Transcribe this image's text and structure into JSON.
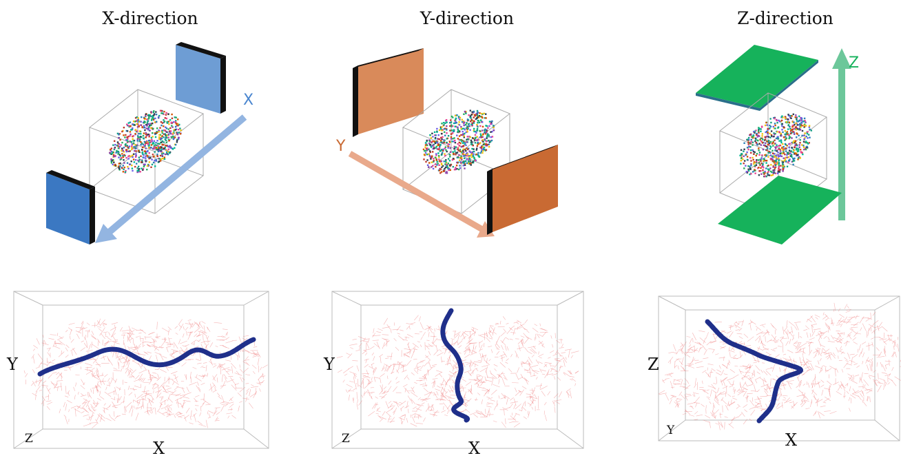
{
  "panels": [
    {
      "title": "X-direction",
      "arrow_label": "X",
      "arrow_color": "#93b5e1",
      "plate_near": "#3b78c2",
      "plate_far": "#6e9dd4",
      "axes": {
        "vertical": "Y",
        "depth": "Z",
        "horizontal": "X"
      }
    },
    {
      "title": "Y-direction",
      "arrow_label": "Y",
      "arrow_color": "#e9a98b",
      "plate_near": "#c96a33",
      "plate_far": "#d98a5a",
      "axes": {
        "vertical": "Y",
        "depth": "Z",
        "horizontal": "X"
      }
    },
    {
      "title": "Z-direction",
      "arrow_label": "Z",
      "arrow_color": "#6cc79a",
      "plate_near": "#16b25b",
      "plate_far": "#16b25b",
      "axes": {
        "vertical": "Z",
        "depth": "Y",
        "horizontal": "X"
      }
    }
  ],
  "colors": {
    "network": "#ef8080",
    "path": "#1f2f8a"
  }
}
